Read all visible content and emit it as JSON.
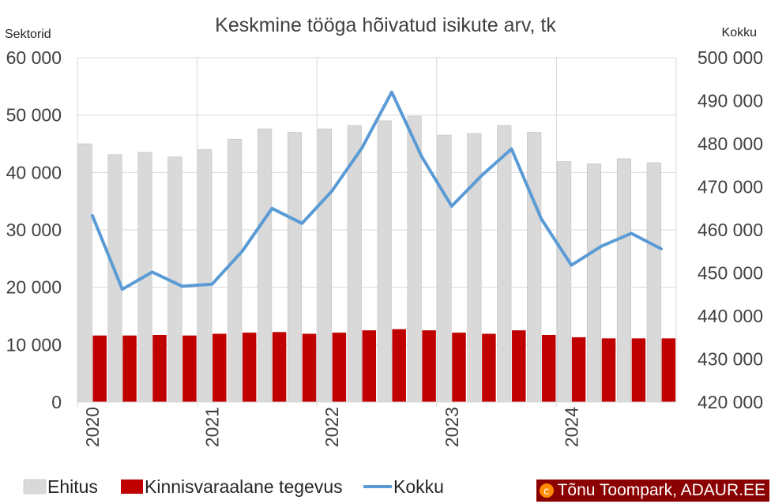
{
  "chart_data": {
    "type": "bar",
    "title": "Keskmine tööga hõivatud isikute arv, tk",
    "ylabel_left": "Sektorid",
    "ylabel_right": "Kokku",
    "ylim_left": [
      0,
      60000
    ],
    "ylim_right": [
      420000,
      500000
    ],
    "yticks_left": [
      "0",
      "10 000",
      "20 000",
      "30 000",
      "40 000",
      "50 000",
      "60 000"
    ],
    "yticks_right": [
      "420 000",
      "430 000",
      "440 000",
      "450 000",
      "460 000",
      "470 000",
      "480 000",
      "490 000",
      "500 000"
    ],
    "year_labels": [
      "2020",
      "2021",
      "2022",
      "2023",
      "2024"
    ],
    "grid": true,
    "legend_position": "bottom-left",
    "series": [
      {
        "name": "Ehitus",
        "type": "bar",
        "axis": "left",
        "color": "#d9d9d9",
        "values": [
          45000,
          43100,
          43500,
          42700,
          44000,
          45800,
          47600,
          47000,
          47600,
          48200,
          49000,
          49800,
          46500,
          46800,
          48200,
          47000,
          41900,
          41500,
          42400,
          41700
        ]
      },
      {
        "name": "Kinnisvaraalane tegevus",
        "type": "bar",
        "axis": "left",
        "color": "#c00000",
        "values": [
          11600,
          11600,
          11700,
          11600,
          11900,
          12100,
          12200,
          11900,
          12100,
          12500,
          12700,
          12500,
          12100,
          11900,
          12500,
          11700,
          11300,
          11100,
          11100,
          11100
        ]
      },
      {
        "name": "Kokku",
        "type": "line",
        "axis": "right",
        "color": "#5b9bd5",
        "values": [
          463300,
          446200,
          450200,
          446900,
          447400,
          455000,
          465000,
          461500,
          469000,
          479000,
          492000,
          477000,
          465500,
          472600,
          478800,
          462500,
          451800,
          456200,
          459200,
          455600
        ]
      }
    ]
  },
  "watermark": {
    "symbol": "c",
    "text": "Tõnu Toompark, ADAUR.EE"
  }
}
